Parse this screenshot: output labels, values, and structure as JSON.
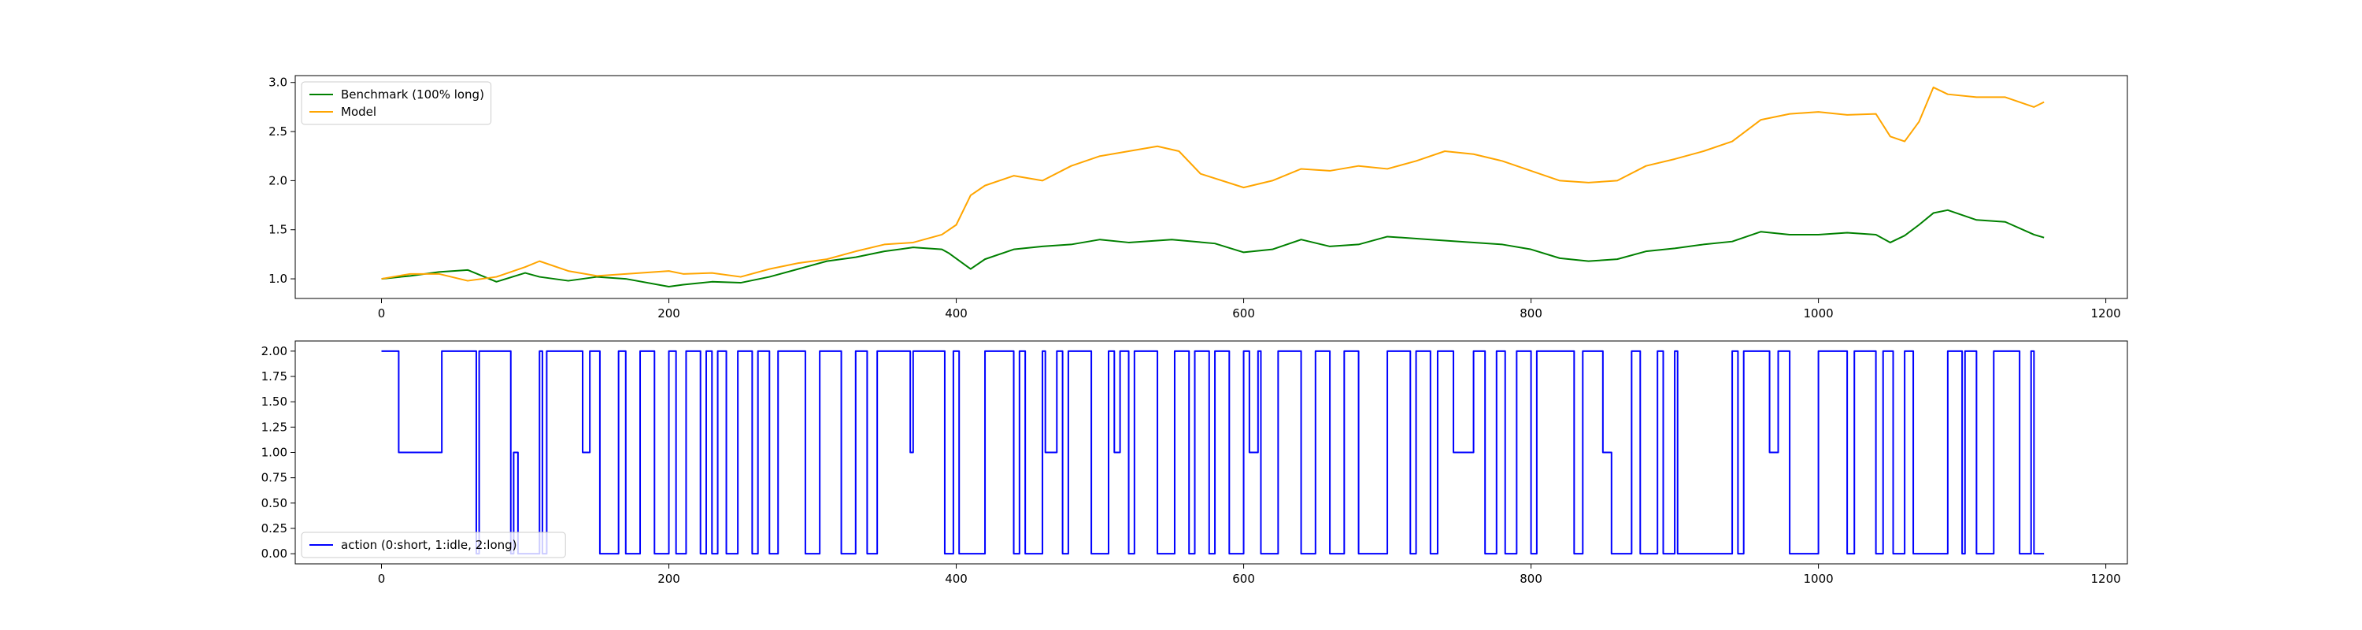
{
  "chart_data": [
    {
      "type": "line",
      "title": "",
      "xlabel": "",
      "ylabel": "",
      "xlim": [
        -60,
        1215
      ],
      "ylim": [
        0.8,
        3.07
      ],
      "x_ticks": [
        0,
        200,
        400,
        600,
        800,
        1000,
        1200
      ],
      "y_ticks": [
        1.0,
        1.5,
        2.0,
        2.5,
        3.0
      ],
      "x_tick_labels": [
        "0",
        "200",
        "400",
        "600",
        "800",
        "1000",
        "1200"
      ],
      "y_tick_labels": [
        "1.0",
        "1.5",
        "2.0",
        "2.5",
        "3.0"
      ],
      "grid": false,
      "legend_position": "top-left",
      "series": [
        {
          "name": "Benchmark (100% long)",
          "color": "#008000",
          "x": [
            0,
            20,
            40,
            60,
            80,
            100,
            110,
            130,
            150,
            170,
            200,
            210,
            230,
            250,
            270,
            290,
            310,
            330,
            350,
            370,
            390,
            395,
            410,
            420,
            440,
            460,
            480,
            500,
            520,
            550,
            580,
            600,
            620,
            640,
            660,
            680,
            700,
            730,
            750,
            780,
            800,
            820,
            840,
            860,
            880,
            900,
            920,
            940,
            960,
            980,
            1000,
            1020,
            1040,
            1050,
            1060,
            1070,
            1080,
            1090,
            1110,
            1130,
            1150,
            1157
          ],
          "y": [
            1.0,
            1.03,
            1.07,
            1.09,
            0.97,
            1.06,
            1.02,
            0.98,
            1.02,
            1.0,
            0.92,
            0.94,
            0.97,
            0.96,
            1.02,
            1.1,
            1.18,
            1.22,
            1.28,
            1.32,
            1.3,
            1.26,
            1.1,
            1.2,
            1.3,
            1.33,
            1.35,
            1.4,
            1.37,
            1.4,
            1.36,
            1.27,
            1.3,
            1.4,
            1.33,
            1.35,
            1.43,
            1.4,
            1.38,
            1.35,
            1.3,
            1.21,
            1.18,
            1.2,
            1.28,
            1.31,
            1.35,
            1.38,
            1.48,
            1.45,
            1.45,
            1.47,
            1.45,
            1.37,
            1.44,
            1.55,
            1.67,
            1.7,
            1.6,
            1.58,
            1.45,
            1.42
          ]
        },
        {
          "name": "Model",
          "color": "#FFA500",
          "x": [
            0,
            20,
            40,
            60,
            80,
            100,
            110,
            130,
            150,
            170,
            200,
            210,
            230,
            250,
            270,
            290,
            310,
            330,
            350,
            370,
            390,
            400,
            410,
            420,
            440,
            460,
            480,
            500,
            520,
            540,
            555,
            570,
            600,
            620,
            640,
            660,
            680,
            700,
            720,
            740,
            760,
            780,
            800,
            820,
            840,
            860,
            880,
            900,
            920,
            940,
            960,
            980,
            1000,
            1020,
            1040,
            1050,
            1060,
            1070,
            1080,
            1090,
            1110,
            1130,
            1150,
            1157
          ],
          "y": [
            1.0,
            1.05,
            1.05,
            0.98,
            1.02,
            1.12,
            1.18,
            1.08,
            1.03,
            1.05,
            1.08,
            1.05,
            1.06,
            1.02,
            1.1,
            1.16,
            1.2,
            1.28,
            1.35,
            1.37,
            1.45,
            1.55,
            1.85,
            1.95,
            2.05,
            2.0,
            2.15,
            2.25,
            2.3,
            2.35,
            2.3,
            2.07,
            1.93,
            2.0,
            2.12,
            2.1,
            2.15,
            2.12,
            2.2,
            2.3,
            2.27,
            2.2,
            2.1,
            2.0,
            1.98,
            2.0,
            2.15,
            2.22,
            2.3,
            2.4,
            2.62,
            2.68,
            2.7,
            2.67,
            2.68,
            2.45,
            2.4,
            2.6,
            2.95,
            2.88,
            2.85,
            2.85,
            2.75,
            2.8
          ]
        }
      ]
    },
    {
      "type": "line",
      "title": "",
      "xlabel": "",
      "ylabel": "",
      "xlim": [
        -60,
        1215
      ],
      "ylim": [
        -0.1,
        2.1
      ],
      "x_ticks": [
        0,
        200,
        400,
        600,
        800,
        1000,
        1200
      ],
      "y_ticks": [
        0.0,
        0.25,
        0.5,
        0.75,
        1.0,
        1.25,
        1.5,
        1.75,
        2.0
      ],
      "x_tick_labels": [
        "0",
        "200",
        "400",
        "600",
        "800",
        "1000",
        "1200"
      ],
      "y_tick_labels": [
        "0.00",
        "0.25",
        "0.50",
        "0.75",
        "1.00",
        "1.25",
        "1.50",
        "1.75",
        "2.00"
      ],
      "grid": false,
      "legend_position": "bottom-left",
      "series": [
        {
          "name": "action (0:short, 1:idle, 2:long)",
          "color": "#0000FF",
          "step": true,
          "x": [
            0,
            8,
            12,
            14,
            36,
            38,
            40,
            42,
            44,
            66,
            68,
            88,
            90,
            92,
            95,
            110,
            112,
            115,
            118,
            140,
            145,
            152,
            165,
            170,
            180,
            190,
            200,
            205,
            212,
            222,
            226,
            230,
            234,
            240,
            248,
            258,
            262,
            270,
            276,
            295,
            305,
            320,
            330,
            338,
            345,
            368,
            370,
            380,
            392,
            398,
            402,
            416,
            418,
            420,
            440,
            444,
            448,
            460,
            462,
            470,
            474,
            478,
            494,
            506,
            510,
            514,
            520,
            524,
            540,
            552,
            562,
            566,
            576,
            580,
            590,
            600,
            604,
            610,
            612,
            624,
            640,
            650,
            660,
            670,
            680,
            700,
            716,
            720,
            730,
            735,
            746,
            760,
            768,
            776,
            782,
            790,
            800,
            804,
            830,
            836,
            850,
            856,
            870,
            876,
            888,
            892,
            900,
            902,
            940,
            944,
            948,
            966,
            972,
            980,
            1000,
            1020,
            1025,
            1040,
            1045,
            1052,
            1060,
            1066,
            1090,
            1100,
            1102,
            1110,
            1122,
            1140,
            1148,
            1150,
            1157
          ],
          "y": [
            2,
            2,
            1,
            1,
            1,
            1,
            1,
            2,
            2,
            0,
            2,
            2,
            0,
            1,
            0,
            2,
            0,
            2,
            2,
            1,
            2,
            0,
            2,
            0,
            2,
            0,
            2,
            0,
            2,
            0,
            2,
            0,
            2,
            0,
            2,
            0,
            2,
            0,
            2,
            0,
            2,
            0,
            2,
            0,
            2,
            1,
            2,
            2,
            0,
            2,
            0,
            0,
            0,
            2,
            0,
            2,
            0,
            2,
            1,
            2,
            0,
            2,
            0,
            2,
            1,
            2,
            0,
            2,
            0,
            2,
            0,
            2,
            0,
            2,
            0,
            2,
            1,
            2,
            0,
            2,
            0,
            2,
            0,
            2,
            0,
            2,
            0,
            2,
            0,
            2,
            1,
            2,
            0,
            2,
            0,
            2,
            0,
            2,
            0,
            2,
            1,
            0,
            2,
            0,
            2,
            0,
            2,
            0,
            2,
            0,
            2,
            1,
            2,
            0,
            2,
            0,
            2,
            0,
            2,
            0,
            2,
            0,
            2,
            0,
            2,
            0,
            2,
            0,
            2,
            0,
            0
          ]
        }
      ]
    }
  ]
}
